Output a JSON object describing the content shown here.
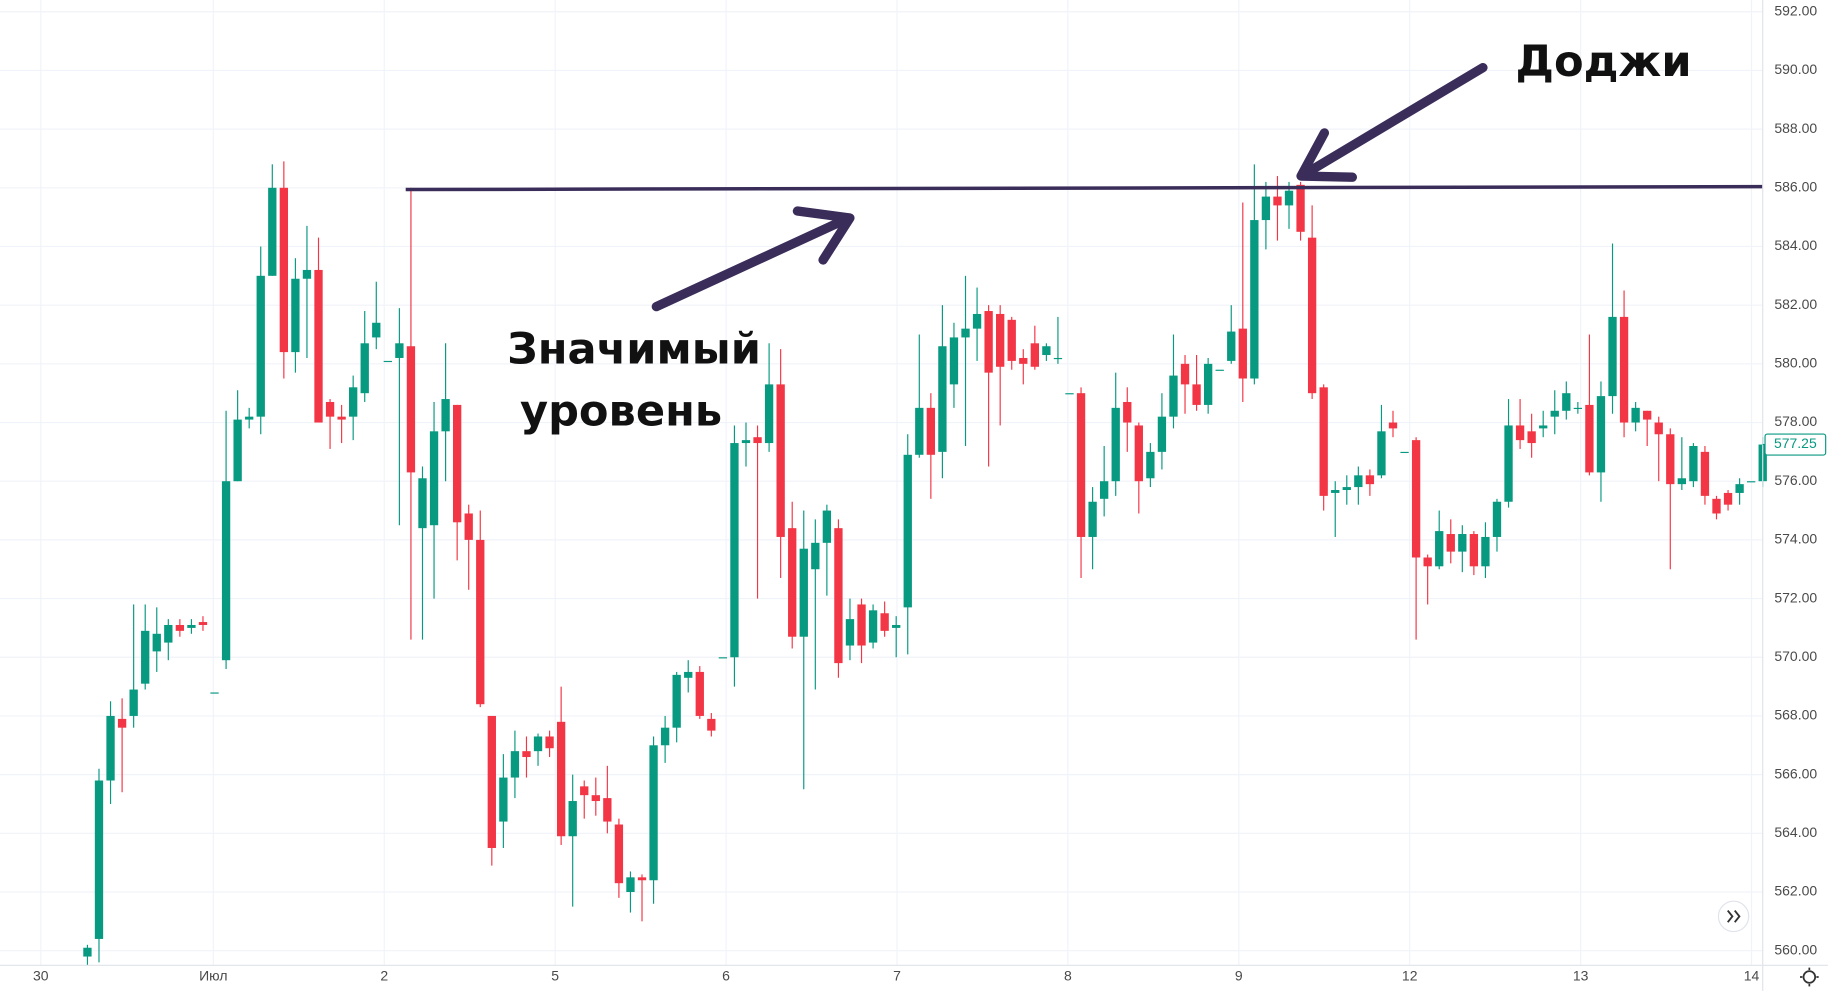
{
  "chart_data": {
    "type": "candlestick",
    "up_color": "#089981",
    "down_color": "#f23645",
    "ylim": [
      559.5,
      592.4
    ],
    "yticks": [
      {
        "value": 560,
        "label": "560.00"
      },
      {
        "value": 562,
        "label": "562.00"
      },
      {
        "value": 564,
        "label": "564.00"
      },
      {
        "value": 566,
        "label": "566.00"
      },
      {
        "value": 568,
        "label": "568.00"
      },
      {
        "value": 570,
        "label": "570.00"
      },
      {
        "value": 572,
        "label": "572.00"
      },
      {
        "value": 574,
        "label": "574.00"
      },
      {
        "value": 576,
        "label": "576.00"
      },
      {
        "value": 578,
        "label": "578.00"
      },
      {
        "value": 580,
        "label": "580.00"
      },
      {
        "value": 582,
        "label": "582.00"
      },
      {
        "value": 584,
        "label": "584.00"
      },
      {
        "value": 586,
        "label": "586.00"
      },
      {
        "value": 588,
        "label": "588.00"
      },
      {
        "value": 590,
        "label": "590.00"
      },
      {
        "value": 592,
        "label": "592.00"
      }
    ],
    "x_labels": [
      "30",
      "Июл",
      "2",
      "5",
      "6",
      "7",
      "8",
      "9",
      "12",
      "13",
      "14"
    ],
    "grid": true,
    "last_price": 577.25,
    "level": 586,
    "level_color": "#3b2d5a",
    "annotations": [
      "Доджи",
      "Значимый",
      "уровень"
    ],
    "ohlc": [
      [
        559.8,
        560.2,
        559.5,
        560.1
      ],
      [
        560.4,
        566.2,
        559.6,
        565.8
      ],
      [
        565.8,
        568.5,
        565.0,
        568.0
      ],
      [
        567.9,
        568.6,
        565.4,
        567.6
      ],
      [
        568.0,
        571.8,
        567.6,
        568.9
      ],
      [
        569.1,
        571.8,
        568.9,
        570.9
      ],
      [
        570.2,
        571.7,
        569.5,
        570.8
      ],
      [
        570.5,
        571.3,
        569.9,
        571.1
      ],
      [
        571.1,
        571.3,
        570.7,
        570.9
      ],
      [
        571.0,
        571.3,
        570.8,
        571.1
      ],
      [
        571.2,
        571.4,
        570.9,
        571.1
      ],
      [
        568.8,
        568.8,
        568.8,
        568.8
      ],
      [
        569.9,
        578.4,
        569.6,
        576.0
      ],
      [
        576.0,
        579.1,
        576.0,
        578.1
      ],
      [
        578.1,
        578.5,
        577.8,
        578.2
      ],
      [
        578.2,
        584.0,
        577.6,
        583.0
      ],
      [
        583.0,
        586.8,
        583.0,
        586.0
      ],
      [
        586.0,
        586.9,
        579.5,
        580.4
      ],
      [
        580.4,
        583.6,
        579.7,
        582.9
      ],
      [
        582.9,
        584.7,
        580.2,
        583.2
      ],
      [
        583.2,
        584.3,
        578.0,
        578.0
      ],
      [
        578.7,
        578.8,
        577.1,
        578.2
      ],
      [
        578.2,
        578.6,
        577.3,
        578.1
      ],
      [
        578.2,
        579.6,
        577.4,
        579.2
      ],
      [
        579.0,
        581.8,
        578.7,
        580.7
      ],
      [
        580.9,
        582.8,
        580.5,
        581.4
      ],
      [
        580.1,
        580.1,
        580.1,
        580.1
      ],
      [
        580.2,
        581.9,
        574.5,
        580.7
      ],
      [
        580.6,
        586.0,
        570.6,
        576.3
      ],
      [
        574.4,
        576.5,
        570.6,
        576.1
      ],
      [
        574.5,
        578.7,
        572.0,
        577.7
      ],
      [
        577.7,
        580.7,
        576.0,
        578.8
      ],
      [
        578.6,
        578.6,
        573.3,
        574.6
      ],
      [
        574.9,
        575.2,
        572.3,
        574.0
      ],
      [
        574.0,
        575.0,
        568.3,
        568.4
      ],
      [
        568.0,
        568.0,
        562.9,
        563.5
      ],
      [
        564.4,
        566.7,
        563.5,
        565.9
      ],
      [
        565.9,
        567.5,
        565.2,
        566.8
      ],
      [
        566.8,
        567.3,
        565.9,
        566.6
      ],
      [
        566.8,
        567.4,
        566.3,
        567.3
      ],
      [
        567.3,
        567.5,
        566.6,
        566.9
      ],
      [
        567.8,
        569.0,
        563.6,
        563.9
      ],
      [
        563.9,
        566.0,
        561.5,
        565.1
      ],
      [
        565.6,
        565.8,
        564.5,
        565.3
      ],
      [
        565.3,
        565.9,
        564.6,
        565.1
      ],
      [
        565.2,
        566.3,
        564.0,
        564.4
      ],
      [
        564.3,
        564.5,
        561.8,
        562.3
      ],
      [
        562.0,
        562.7,
        561.3,
        562.5
      ],
      [
        562.5,
        562.6,
        561.0,
        562.4
      ],
      [
        562.4,
        567.3,
        561.6,
        567.0
      ],
      [
        567.0,
        568.0,
        566.4,
        567.6
      ],
      [
        567.6,
        569.5,
        567.1,
        569.4
      ],
      [
        569.3,
        569.9,
        568.8,
        569.5
      ],
      [
        569.5,
        569.7,
        567.9,
        568.0
      ],
      [
        567.9,
        568.1,
        567.3,
        567.5
      ],
      [
        570.0,
        570.0,
        570.0,
        570.0
      ],
      [
        570.0,
        577.9,
        569.0,
        577.3
      ],
      [
        577.3,
        578.0,
        576.5,
        577.4
      ],
      [
        577.5,
        577.9,
        572.0,
        577.3
      ],
      [
        577.3,
        580.7,
        577.0,
        579.3
      ],
      [
        579.3,
        580.5,
        572.7,
        574.1
      ],
      [
        574.4,
        575.3,
        570.3,
        570.7
      ],
      [
        570.7,
        575.0,
        565.5,
        573.7
      ],
      [
        573.0,
        574.7,
        568.9,
        573.9
      ],
      [
        573.9,
        575.2,
        572.1,
        575.0
      ],
      [
        574.4,
        574.7,
        569.3,
        569.8
      ],
      [
        570.4,
        572.0,
        569.9,
        571.3
      ],
      [
        571.8,
        572.0,
        569.8,
        570.4
      ],
      [
        570.5,
        571.8,
        570.3,
        571.6
      ],
      [
        571.5,
        571.9,
        570.7,
        570.9
      ],
      [
        571.0,
        571.4,
        570.0,
        571.1
      ],
      [
        571.7,
        577.6,
        570.1,
        576.9
      ],
      [
        576.9,
        581.0,
        576.8,
        578.5
      ],
      [
        578.5,
        579.0,
        575.4,
        576.9
      ],
      [
        577.0,
        582.0,
        576.1,
        580.6
      ],
      [
        579.3,
        581.4,
        578.5,
        580.9
      ],
      [
        580.9,
        583.0,
        577.2,
        581.2
      ],
      [
        581.2,
        582.6,
        580.1,
        581.7
      ],
      [
        581.8,
        582.0,
        576.5,
        579.7
      ],
      [
        581.7,
        582.0,
        577.9,
        579.9
      ],
      [
        581.5,
        581.6,
        579.8,
        580.1
      ],
      [
        580.2,
        580.5,
        579.3,
        580.0
      ],
      [
        580.7,
        581.3,
        579.8,
        579.9
      ],
      [
        580.3,
        580.7,
        580.1,
        580.6
      ],
      [
        580.2,
        581.6,
        580.0,
        580.2
      ],
      [
        579.0,
        579.0,
        579.0,
        579.0
      ],
      [
        579.0,
        579.2,
        572.7,
        574.1
      ],
      [
        574.1,
        575.8,
        573.0,
        575.3
      ],
      [
        575.4,
        577.2,
        574.8,
        576.0
      ],
      [
        576.0,
        579.7,
        575.5,
        578.5
      ],
      [
        578.7,
        579.2,
        577.0,
        578.0
      ],
      [
        577.9,
        578.0,
        574.9,
        576.0
      ],
      [
        576.1,
        577.3,
        575.8,
        577.0
      ],
      [
        577.0,
        579.0,
        576.4,
        578.2
      ],
      [
        578.2,
        581.0,
        577.8,
        579.6
      ],
      [
        580.0,
        580.3,
        578.3,
        579.3
      ],
      [
        579.3,
        580.3,
        578.4,
        578.6
      ],
      [
        578.6,
        580.2,
        578.3,
        580.0
      ],
      [
        579.8,
        579.8,
        579.8,
        579.8
      ],
      [
        580.1,
        582.0,
        580.0,
        581.1
      ],
      [
        581.2,
        585.5,
        578.7,
        579.5
      ],
      [
        579.5,
        586.8,
        579.3,
        584.9
      ],
      [
        584.9,
        586.2,
        583.9,
        585.7
      ],
      [
        585.7,
        586.4,
        584.2,
        585.4
      ],
      [
        585.4,
        586.2,
        584.6,
        585.9
      ],
      [
        586.1,
        586.2,
        584.2,
        584.5
      ],
      [
        584.3,
        585.4,
        578.8,
        579.0
      ],
      [
        579.2,
        579.3,
        575.0,
        575.5
      ],
      [
        575.6,
        576.0,
        574.1,
        575.7
      ],
      [
        575.7,
        576.2,
        575.2,
        575.8
      ],
      [
        575.8,
        576.5,
        575.2,
        576.2
      ],
      [
        576.2,
        576.4,
        575.5,
        575.9
      ],
      [
        576.2,
        578.6,
        576.1,
        577.7
      ],
      [
        578.0,
        578.4,
        577.5,
        577.8
      ],
      [
        577.0,
        577.0,
        577.0,
        577.0
      ],
      [
        577.4,
        577.5,
        570.6,
        573.4
      ],
      [
        573.4,
        573.5,
        571.8,
        573.1
      ],
      [
        573.1,
        575.0,
        573.0,
        574.3
      ],
      [
        574.2,
        574.7,
        573.2,
        573.6
      ],
      [
        573.6,
        574.5,
        572.9,
        574.2
      ],
      [
        574.2,
        574.3,
        572.8,
        573.1
      ],
      [
        573.1,
        574.6,
        572.7,
        574.1
      ],
      [
        574.1,
        575.4,
        573.6,
        575.3
      ],
      [
        575.3,
        578.8,
        575.1,
        577.9
      ],
      [
        577.9,
        578.8,
        577.1,
        577.4
      ],
      [
        577.7,
        578.3,
        576.8,
        577.3
      ],
      [
        577.8,
        578.4,
        577.5,
        577.9
      ],
      [
        578.2,
        579.1,
        577.6,
        578.4
      ],
      [
        578.4,
        579.4,
        578.1,
        579.0
      ],
      [
        578.5,
        578.7,
        578.3,
        578.5
      ],
      [
        578.6,
        581.0,
        576.2,
        576.3
      ],
      [
        576.3,
        579.4,
        575.3,
        578.9
      ],
      [
        578.9,
        584.1,
        578.3,
        581.6
      ],
      [
        581.6,
        582.5,
        577.5,
        578.0
      ],
      [
        578.0,
        578.7,
        577.7,
        578.5
      ],
      [
        578.4,
        578.4,
        577.2,
        578.1
      ],
      [
        578.0,
        578.2,
        576.0,
        577.6
      ],
      [
        577.6,
        577.8,
        573.0,
        575.9
      ],
      [
        575.9,
        577.5,
        575.7,
        576.1
      ],
      [
        576.0,
        577.3,
        575.8,
        577.2
      ],
      [
        577.0,
        577.2,
        575.2,
        575.5
      ],
      [
        575.4,
        575.5,
        574.7,
        574.9
      ],
      [
        575.6,
        575.7,
        575.0,
        575.2
      ],
      [
        575.6,
        576.1,
        575.2,
        575.9
      ],
      [
        576.0,
        576.0,
        576.0,
        576.0
      ],
      [
        576.0,
        577.5,
        575.8,
        577.25
      ]
    ]
  }
}
